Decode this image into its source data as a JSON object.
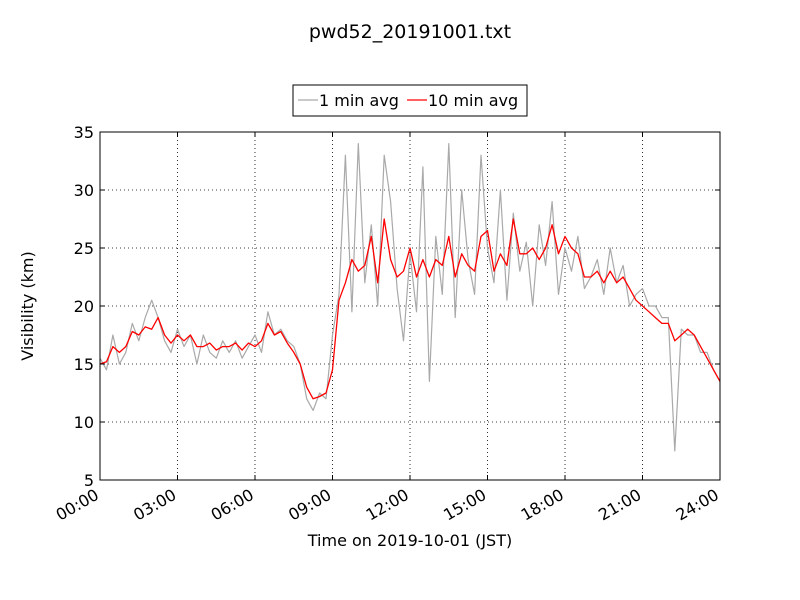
{
  "chart_data": {
    "type": "line",
    "title": "pwd52_20191001.txt",
    "xlabel": "Time on 2019-10-01 (JST)",
    "ylabel": "Visibility (km)",
    "xlim": [
      "00:00",
      "24:00"
    ],
    "ylim": [
      5,
      35
    ],
    "x_ticks": [
      "00:00",
      "03:00",
      "06:00",
      "09:00",
      "12:00",
      "15:00",
      "18:00",
      "21:00",
      "24:00"
    ],
    "y_ticks": [
      5,
      10,
      15,
      20,
      25,
      30,
      35
    ],
    "grid": true,
    "legend_position": "top-center",
    "series": [
      {
        "name": "1 min avg",
        "color": "#a9a9a9",
        "x": [
          "00:00",
          "00:15",
          "00:30",
          "00:45",
          "01:00",
          "01:15",
          "01:30",
          "01:45",
          "02:00",
          "02:15",
          "02:30",
          "02:45",
          "03:00",
          "03:15",
          "03:30",
          "03:45",
          "04:00",
          "04:15",
          "04:30",
          "04:45",
          "05:00",
          "05:15",
          "05:30",
          "05:45",
          "06:00",
          "06:15",
          "06:30",
          "06:45",
          "07:00",
          "07:15",
          "07:30",
          "07:45",
          "08:00",
          "08:15",
          "08:30",
          "08:45",
          "09:00",
          "09:15",
          "09:30",
          "09:45",
          "10:00",
          "10:15",
          "10:30",
          "10:45",
          "11:00",
          "11:15",
          "11:30",
          "11:45",
          "12:00",
          "12:15",
          "12:30",
          "12:45",
          "13:00",
          "13:15",
          "13:30",
          "13:45",
          "14:00",
          "14:15",
          "14:30",
          "14:45",
          "15:00",
          "15:15",
          "15:30",
          "15:45",
          "16:00",
          "16:15",
          "16:30",
          "16:45",
          "17:00",
          "17:15",
          "17:30",
          "17:45",
          "18:00",
          "18:15",
          "18:30",
          "18:45",
          "19:00",
          "19:15",
          "19:30",
          "19:45",
          "20:00",
          "20:15",
          "20:30",
          "20:45",
          "21:00",
          "21:15",
          "21:30",
          "21:45",
          "22:00",
          "22:15",
          "22:30",
          "22:45",
          "23:00",
          "23:15",
          "23:30",
          "23:45",
          "24:00"
        ],
        "values": [
          15.5,
          14.5,
          17.5,
          15.0,
          16.0,
          18.5,
          17.0,
          19.0,
          20.5,
          19.0,
          17.0,
          16.0,
          18.0,
          16.5,
          17.5,
          15.0,
          17.5,
          16.0,
          15.5,
          17.0,
          16.0,
          17.0,
          15.5,
          16.5,
          17.5,
          16.0,
          19.5,
          17.5,
          18.0,
          17.0,
          16.5,
          15.0,
          12.0,
          11.0,
          12.5,
          12.0,
          17.5,
          21.0,
          33.0,
          19.5,
          34.0,
          22.0,
          27.0,
          20.0,
          33.0,
          29.0,
          21.5,
          17.0,
          24.5,
          19.5,
          32.0,
          13.5,
          26.0,
          21.0,
          34.0,
          19.0,
          30.0,
          24.0,
          21.0,
          33.0,
          25.0,
          22.0,
          30.0,
          20.5,
          28.0,
          23.0,
          25.5,
          20.0,
          27.0,
          23.5,
          29.0,
          21.0,
          25.0,
          23.0,
          26.0,
          21.5,
          22.5,
          24.0,
          21.0,
          25.0,
          22.0,
          23.5,
          20.0,
          21.0,
          21.5,
          20.0,
          20.0,
          19.0,
          19.0,
          7.5,
          18.0,
          17.5,
          17.5,
          16.0,
          16.0,
          14.5,
          13.5
        ]
      },
      {
        "name": "10 min avg",
        "color": "#ff0000",
        "x": [
          "00:00",
          "00:15",
          "00:30",
          "00:45",
          "01:00",
          "01:15",
          "01:30",
          "01:45",
          "02:00",
          "02:15",
          "02:30",
          "02:45",
          "03:00",
          "03:15",
          "03:30",
          "03:45",
          "04:00",
          "04:15",
          "04:30",
          "04:45",
          "05:00",
          "05:15",
          "05:30",
          "05:45",
          "06:00",
          "06:15",
          "06:30",
          "06:45",
          "07:00",
          "07:15",
          "07:30",
          "07:45",
          "08:00",
          "08:15",
          "08:30",
          "08:45",
          "09:00",
          "09:15",
          "09:30",
          "09:45",
          "10:00",
          "10:15",
          "10:30",
          "10:45",
          "11:00",
          "11:15",
          "11:30",
          "11:45",
          "12:00",
          "12:15",
          "12:30",
          "12:45",
          "13:00",
          "13:15",
          "13:30",
          "13:45",
          "14:00",
          "14:15",
          "14:30",
          "14:45",
          "15:00",
          "15:15",
          "15:30",
          "15:45",
          "16:00",
          "16:15",
          "16:30",
          "16:45",
          "17:00",
          "17:15",
          "17:30",
          "17:45",
          "18:00",
          "18:15",
          "18:30",
          "18:45",
          "19:00",
          "19:15",
          "19:30",
          "19:45",
          "20:00",
          "20:15",
          "20:30",
          "20:45",
          "21:00",
          "21:15",
          "21:30",
          "21:45",
          "22:00",
          "22:15",
          "22:30",
          "22:45",
          "23:00",
          "23:15",
          "23:30",
          "23:45",
          "24:00"
        ],
        "values": [
          15.0,
          15.2,
          16.5,
          16.0,
          16.5,
          17.8,
          17.5,
          18.2,
          18.0,
          19.0,
          17.5,
          16.8,
          17.5,
          17.0,
          17.5,
          16.5,
          16.5,
          16.8,
          16.2,
          16.5,
          16.5,
          16.8,
          16.2,
          16.8,
          16.5,
          17.0,
          18.5,
          17.5,
          17.8,
          16.8,
          16.0,
          15.0,
          13.0,
          12.0,
          12.2,
          12.5,
          14.5,
          20.5,
          22.0,
          24.0,
          23.0,
          23.5,
          26.0,
          22.0,
          27.5,
          24.0,
          22.5,
          23.0,
          25.0,
          22.5,
          24.0,
          22.5,
          24.0,
          23.5,
          26.0,
          22.5,
          24.5,
          23.5,
          23.0,
          26.0,
          26.5,
          23.0,
          24.5,
          23.5,
          27.5,
          24.5,
          24.5,
          25.0,
          24.0,
          25.0,
          27.0,
          24.5,
          26.0,
          25.0,
          24.5,
          22.5,
          22.5,
          23.0,
          22.0,
          23.0,
          22.0,
          22.5,
          21.5,
          20.5,
          20.0,
          19.5,
          19.0,
          18.5,
          18.5,
          17.0,
          17.5,
          18.0,
          17.5,
          16.5,
          15.5,
          14.5,
          13.5
        ]
      }
    ]
  }
}
